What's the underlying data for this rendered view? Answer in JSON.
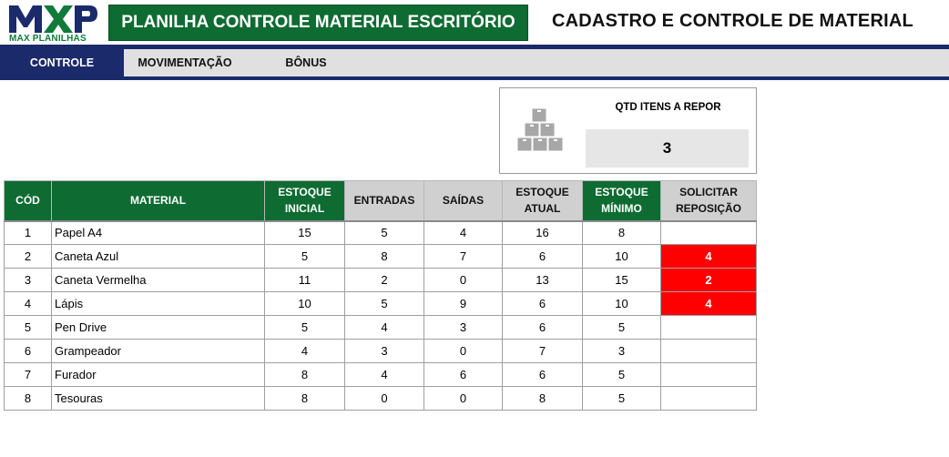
{
  "logo": {
    "mark": "MXP",
    "subtitle": "MAX PLANILHAS"
  },
  "header": {
    "title": "PLANILHA CONTROLE MATERIAL ESCRITÓRIO",
    "subtitle": "CADASTRO E CONTROLE DE MATERIAL"
  },
  "nav": {
    "tabs": [
      {
        "label": "CONTROLE",
        "active": true
      },
      {
        "label": "MOVIMENTAÇÃO",
        "active": false
      },
      {
        "label": "BÔNUS",
        "active": false
      }
    ]
  },
  "kpi": {
    "icon": "boxes-stack-icon",
    "label": "QTD ITENS A REPOR",
    "value": "3"
  },
  "table": {
    "headers": {
      "cod": "CÓD",
      "material": "MATERIAL",
      "estoque_inicial": [
        "ESTOQUE",
        "INICIAL"
      ],
      "entradas": "ENTRADAS",
      "saidas": "SAÍDAS",
      "estoque_atual": [
        "ESTOQUE",
        "ATUAL"
      ],
      "estoque_minimo": [
        "ESTOQUE",
        "MÍNIMO"
      ],
      "solicitar": [
        "SOLICITAR",
        "REPOSIÇÃO"
      ]
    },
    "rows": [
      {
        "cod": "1",
        "material": "Papel A4",
        "inicial": "15",
        "entradas": "5",
        "saidas": "4",
        "atual": "16",
        "minimo": "8",
        "solicitar": ""
      },
      {
        "cod": "2",
        "material": "Caneta Azul",
        "inicial": "5",
        "entradas": "8",
        "saidas": "7",
        "atual": "6",
        "minimo": "10",
        "solicitar": "4"
      },
      {
        "cod": "3",
        "material": "Caneta Vermelha",
        "inicial": "11",
        "entradas": "2",
        "saidas": "0",
        "atual": "13",
        "minimo": "15",
        "solicitar": "2"
      },
      {
        "cod": "4",
        "material": "Lápis",
        "inicial": "10",
        "entradas": "5",
        "saidas": "9",
        "atual": "6",
        "minimo": "10",
        "solicitar": "4"
      },
      {
        "cod": "5",
        "material": "Pen Drive",
        "inicial": "5",
        "entradas": "4",
        "saidas": "3",
        "atual": "6",
        "minimo": "5",
        "solicitar": ""
      },
      {
        "cod": "6",
        "material": "Grampeador",
        "inicial": "4",
        "entradas": "3",
        "saidas": "0",
        "atual": "7",
        "minimo": "3",
        "solicitar": ""
      },
      {
        "cod": "7",
        "material": "Furador",
        "inicial": "8",
        "entradas": "4",
        "saidas": "6",
        "atual": "6",
        "minimo": "5",
        "solicitar": ""
      },
      {
        "cod": "8",
        "material": "Tesouras",
        "inicial": "8",
        "entradas": "0",
        "saidas": "0",
        "atual": "8",
        "minimo": "5",
        "solicitar": ""
      }
    ]
  },
  "colors": {
    "green": "#0e6b32",
    "navy": "#1b2a6b",
    "alert": "#ff0000",
    "header_gray": "#d0d0d0"
  }
}
